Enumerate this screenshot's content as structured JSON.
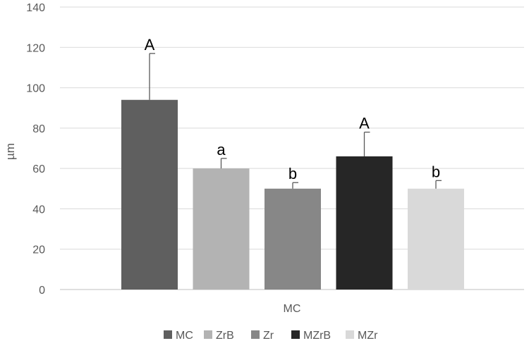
{
  "chart_data": {
    "type": "bar",
    "title": "",
    "xlabel": "",
    "ylabel": "µm",
    "category": "MC",
    "ylim": [
      0,
      140
    ],
    "y_ticks": [
      0,
      20,
      40,
      60,
      80,
      100,
      120,
      140
    ],
    "grid": true,
    "legend_position": "bottom",
    "series": [
      {
        "name": "MC",
        "value": 94,
        "error": 23,
        "label": "A",
        "color": "#5f5f5f"
      },
      {
        "name": "ZrB",
        "value": 60,
        "error": 5,
        "label": "a",
        "color": "#b3b3b3"
      },
      {
        "name": "Zr",
        "value": 50,
        "error": 3,
        "label": "b",
        "color": "#878787"
      },
      {
        "name": "MZrB",
        "value": 66,
        "error": 12,
        "label": "A",
        "color": "#262626"
      },
      {
        "name": "MZr",
        "value": 50,
        "error": 4,
        "label": "b",
        "color": "#d9d9d9"
      }
    ]
  }
}
